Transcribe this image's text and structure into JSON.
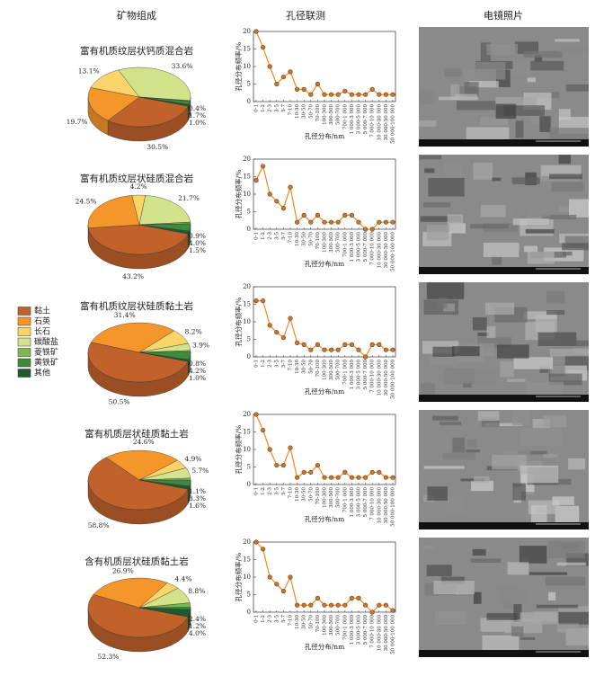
{
  "columns": [
    "矿物组成",
    "孔径联测",
    "电镜照片"
  ],
  "legend": {
    "labels": [
      "黏土",
      "石英",
      "长石",
      "碳酸盐",
      "菱铁矿",
      "黄铁矿",
      "其他"
    ],
    "colors": [
      "#c0622a",
      "#f5962a",
      "#fbd56a",
      "#d2e38c",
      "#7fb848",
      "#3f8a3c",
      "#1e5a2e"
    ]
  },
  "chart_data": [
    {
      "type": "pie",
      "title": "富有机质纹层状钙质混合岩",
      "values": [
        30.5,
        19.7,
        13.1,
        33.6,
        0.4,
        1.7,
        1.0
      ],
      "value_labels": [
        "30.5%",
        "19.7%",
        "13.1%",
        "33.6%",
        "0.4%",
        "1.7%",
        "1.0%"
      ]
    },
    {
      "type": "pie",
      "title": "富有机质纹层状硅质混合岩",
      "values": [
        43.2,
        24.5,
        4.2,
        21.7,
        0.9,
        4.0,
        1.5
      ],
      "value_labels": [
        "43.2%",
        "24.5%",
        "4.2%",
        "21.7%",
        "0.9%",
        "4.0%",
        "1.5%"
      ]
    },
    {
      "type": "pie",
      "title": "富有机质纹层状硅质黏土岩",
      "values": [
        50.5,
        31.4,
        8.2,
        3.9,
        0.8,
        4.2,
        1.0
      ],
      "value_labels": [
        "50.5%",
        "31.4%",
        "8.2%",
        "3.9%",
        "0.8%",
        "4.2%",
        "1.0%"
      ]
    },
    {
      "type": "pie",
      "title": "富有机质层状硅质黏土岩",
      "values": [
        58.8,
        24.6,
        4.9,
        5.7,
        1.1,
        3.3,
        1.6
      ],
      "value_labels": [
        "58.8%",
        "24.6%",
        "4.9%",
        "5.7%",
        "1.1%",
        "3.3%",
        "1.6%"
      ]
    },
    {
      "type": "pie",
      "title": "含有机质层状硅质黏土岩",
      "values": [
        52.3,
        26.9,
        4.4,
        8.8,
        2.4,
        1.2,
        4.0
      ],
      "value_labels": [
        "52.3%",
        "26.9%",
        "4.4%",
        "8.8%",
        "2.4%",
        "1.2%",
        "4.0%"
      ]
    },
    {
      "type": "line",
      "x_label": "孔径分布/nm",
      "y_label": "孔径分布频率/%",
      "color": "#f08a24",
      "categories": [
        "0-1",
        "1-2",
        "2-3",
        "3-5",
        "5-7",
        "7-10",
        "10-30",
        "30-50",
        "50-70",
        "70-100",
        "100-300",
        "300-500",
        "500-700",
        "700-1 000",
        "1 000-3 000",
        "3 000-5 000",
        "5 000-7 000",
        "7 000-10 000",
        "10 000-30 000",
        "30 000-50 000",
        "50 000-100 000"
      ],
      "values": [
        20,
        15.5,
        10,
        5,
        7,
        8.5,
        3.5,
        3.5,
        2,
        5,
        2,
        2,
        2,
        3,
        2,
        2,
        2,
        3.5,
        2,
        2,
        2
      ],
      "ylim": [
        0,
        20
      ],
      "yticks": [
        0,
        5,
        10,
        15,
        20
      ]
    },
    {
      "type": "line",
      "x_label": "孔径分布/nm",
      "y_label": "孔径分布频率/%",
      "color": "#f08a24",
      "categories": [
        "0-1",
        "1-2",
        "2-3",
        "3-5",
        "5-7",
        "7-10",
        "10-30",
        "30-50",
        "50-70",
        "70-100",
        "100-300",
        "300-500",
        "500-700",
        "700-1 000",
        "1 000-3 000",
        "3 000-5 000",
        "5 000-7 000",
        "7 000-10 000",
        "10 000-30 000",
        "30 000-50 000",
        "50 000-100 000"
      ],
      "values": [
        14,
        18,
        10,
        8,
        6,
        12,
        2,
        4,
        2,
        4,
        2,
        2,
        2,
        4,
        4,
        2,
        0,
        0,
        2,
        2,
        2
      ],
      "ylim": [
        0,
        20
      ],
      "yticks": [
        0,
        5,
        10,
        15,
        20
      ]
    },
    {
      "type": "line",
      "x_label": "孔径分布/nm",
      "y_label": "孔径分布频率/%",
      "color": "#f08a24",
      "categories": [
        "0-1",
        "1-2",
        "2-3",
        "3-5",
        "5-7",
        "7-10",
        "10-30",
        "30-50",
        "50-70",
        "70-100",
        "100-300",
        "300-500",
        "500-700",
        "700-1 000",
        "1 000-3 000",
        "3 000-5 000",
        "5 000-7 000",
        "7 000-10 000",
        "10 000-30 000",
        "30 000-50 000",
        "50 000-100 000"
      ],
      "values": [
        16,
        16,
        9,
        7,
        5.5,
        11,
        4,
        3.5,
        2,
        3.5,
        2,
        2,
        2,
        3.5,
        3.5,
        2,
        0,
        3.5,
        3.5,
        2,
        2
      ],
      "ylim": [
        0,
        20
      ],
      "yticks": [
        0,
        5,
        10,
        15,
        20
      ]
    },
    {
      "type": "line",
      "x_label": "孔径分布/nm",
      "y_label": "孔径分布频率/%",
      "color": "#f08a24",
      "categories": [
        "0-1",
        "1-2",
        "2-3",
        "3-5",
        "5-7",
        "7-10",
        "10-30",
        "30-50",
        "50-70",
        "70-100",
        "100-300",
        "300-500",
        "500-700",
        "700-1 000",
        "1 000-3 000",
        "3 000-5 000",
        "5 000-7 000",
        "7 000-10 000",
        "10 000-30 000",
        "30 000-50 000",
        "50 000-100 000"
      ],
      "values": [
        20,
        15.5,
        10,
        5.5,
        5.5,
        10.5,
        2,
        3.5,
        3.5,
        5.5,
        2,
        2,
        2,
        3.5,
        2,
        2,
        2,
        3.5,
        3.5,
        2,
        2
      ],
      "ylim": [
        0,
        20
      ],
      "yticks": [
        0,
        5,
        10,
        15,
        20
      ]
    },
    {
      "type": "line",
      "x_label": "孔径分布/nm",
      "y_label": "孔径分布频率/%",
      "color": "#f08a24",
      "categories": [
        "0-1",
        "1-2",
        "2-3",
        "3-5",
        "5-7",
        "7-10",
        "10-30",
        "30-50",
        "50-70",
        "70-100",
        "100-300",
        "300-500",
        "500-700",
        "700-1 000",
        "1 000-3 000",
        "3 000-5 000",
        "5 000-7 000",
        "7 000-10 000",
        "10 000-30 000",
        "30 000-50 000",
        "50 000-100 000"
      ],
      "values": [
        20,
        18,
        10,
        8,
        6,
        10,
        2,
        2,
        2,
        4,
        2,
        2,
        2,
        2,
        4,
        4,
        2,
        0,
        2,
        2,
        0.5
      ],
      "ylim": [
        0,
        20
      ],
      "yticks": [
        0,
        5,
        10,
        15,
        20
      ]
    }
  ]
}
